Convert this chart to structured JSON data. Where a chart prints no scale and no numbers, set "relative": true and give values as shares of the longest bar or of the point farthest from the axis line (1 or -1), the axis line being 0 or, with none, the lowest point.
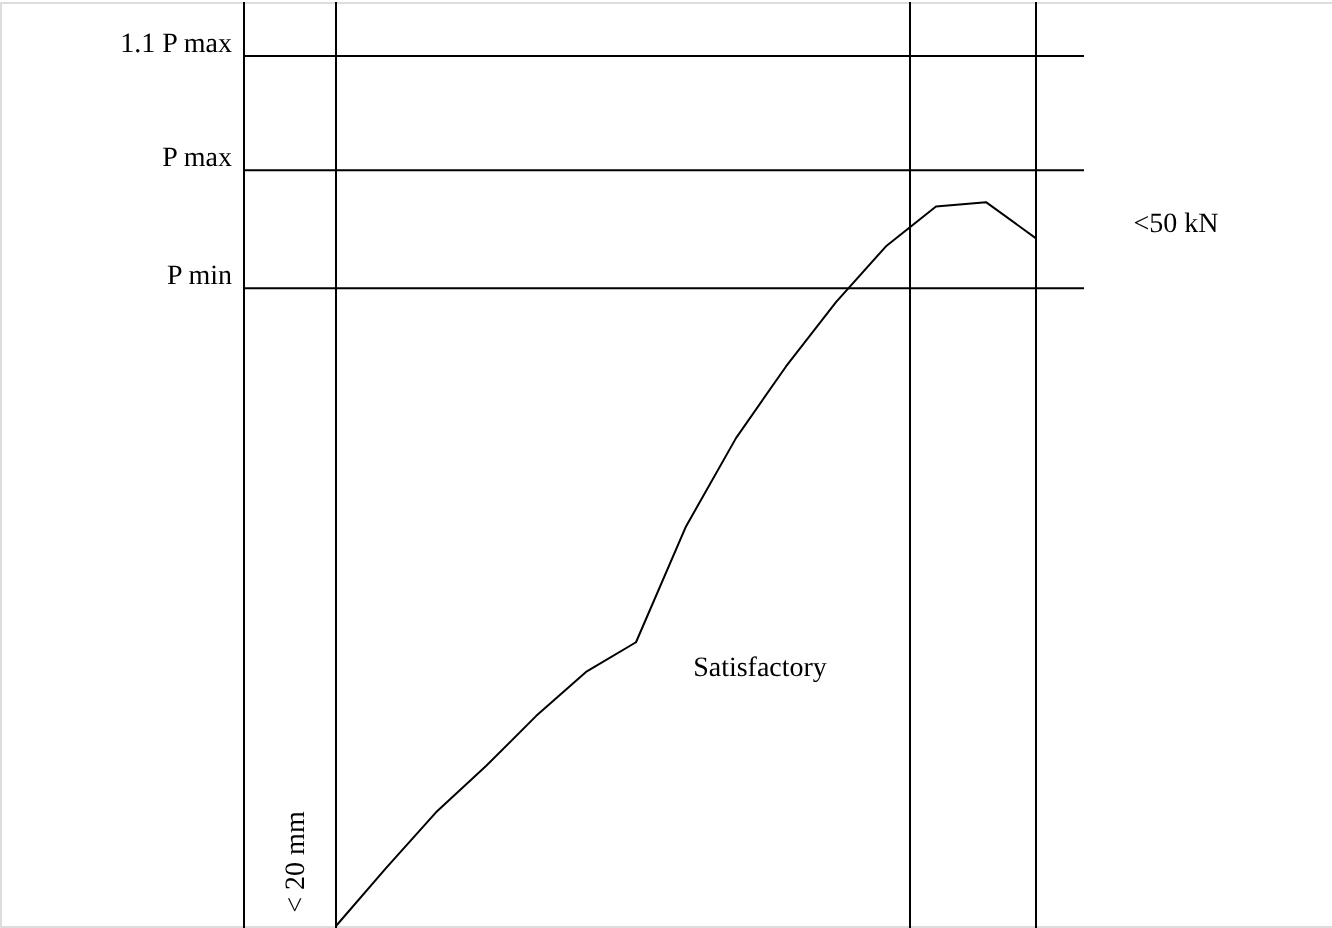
{
  "chart_data": {
    "type": "line",
    "relative": true,
    "marker": "none",
    "line_style": "solid",
    "categories": [
      null,
      null,
      null,
      null,
      null,
      null,
      null,
      null,
      null,
      null,
      null,
      null,
      null,
      null,
      null
    ],
    "series": [
      {
        "color": "#000000",
        "values": [
          0,
          0.08,
          0.157,
          0.221,
          0.29,
          0.351,
          0.392,
          0.552,
          0.674,
          0.773,
          0.862,
          0.939,
          0.994,
          1.0,
          0.95
        ]
      }
    ],
    "ref_lines": [
      {
        "axis": "y",
        "value": 1.202,
        "label": "1.1 P max",
        "color": "#000000"
      },
      {
        "axis": "y",
        "value": 1.044,
        "label": "P max",
        "color": "#000000"
      },
      {
        "axis": "y",
        "value": 0.881,
        "label": "P min",
        "color": "#000000"
      }
    ],
    "annotations": [
      "Satisfactory",
      "< 20 mm",
      "<50 kN"
    ]
  }
}
